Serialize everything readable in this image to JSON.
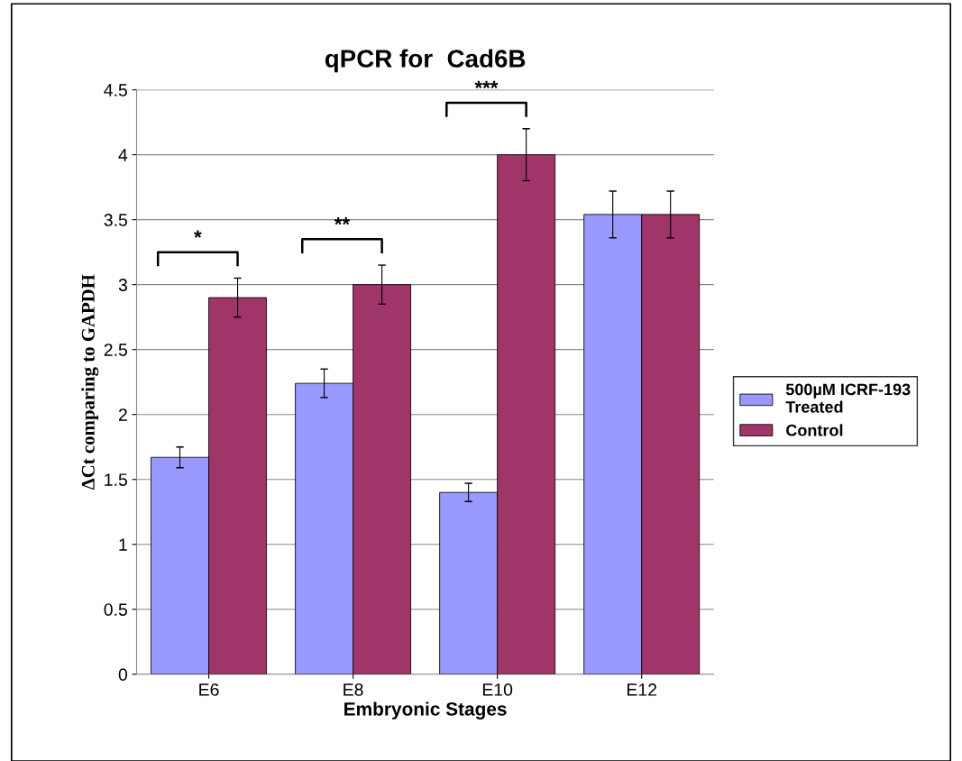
{
  "chart_data": {
    "type": "bar",
    "title": "qPCR for  Cad6B",
    "xlabel": "Embryonic Stages",
    "ylabel": "ΔCt comparing to GAPDH",
    "categories": [
      "E6",
      "E8",
      "E10",
      "E12"
    ],
    "series": [
      {
        "name": "500µM ICRF-193 Treated",
        "color": "#9999ff",
        "values": [
          1.67,
          2.24,
          1.4,
          3.54
        ],
        "errors": [
          0.08,
          0.11,
          0.07,
          0.18
        ]
      },
      {
        "name": "Control",
        "color": "#a0356a",
        "values": [
          2.9,
          3.0,
          4.0,
          3.54
        ],
        "errors": [
          0.15,
          0.15,
          0.2,
          0.18
        ]
      }
    ],
    "ylim": [
      0,
      4.5
    ],
    "yticks": [
      0,
      0.5,
      1,
      1.5,
      2,
      2.5,
      3,
      3.5,
      4,
      4.5
    ],
    "grid": "y",
    "legend": "right",
    "annotations": [
      "*",
      "**",
      "***"
    ]
  }
}
